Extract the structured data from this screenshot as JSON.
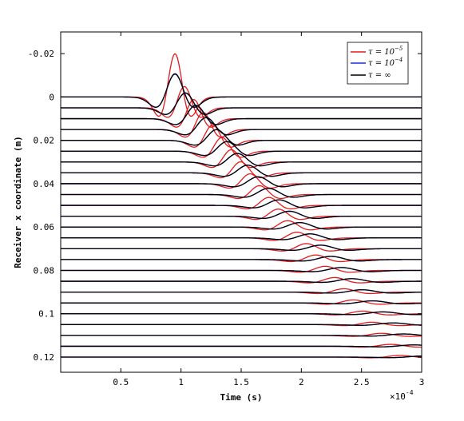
{
  "chart_data": {
    "type": "line",
    "title": "",
    "xlabel": "Time (s)",
    "ylabel": "Receiver x coordinate (m)",
    "x_multiplier_label": "×10",
    "x_multiplier_exp": "-4",
    "xlim": [
      0,
      3
    ],
    "ylim": [
      -0.03,
      0.127
    ],
    "y_reversed": true,
    "x_ticks": [
      0.5,
      1,
      1.5,
      2,
      2.5,
      3
    ],
    "x_tick_labels": [
      "0.5",
      "1",
      "1.5",
      "2",
      "2.5",
      "3"
    ],
    "y_ticks": [
      -0.02,
      0,
      0.02,
      0.04,
      0.06,
      0.08,
      0.1,
      0.12
    ],
    "y_tick_labels": [
      "-0.02",
      "0",
      "0.02",
      "0.04",
      "0.06",
      "0.08",
      "0.1",
      "0.12"
    ],
    "receiver_offsets": [
      0,
      0.005,
      0.01,
      0.015,
      0.02,
      0.025,
      0.03,
      0.035,
      0.04,
      0.045,
      0.05,
      0.055,
      0.06,
      0.065,
      0.07,
      0.075,
      0.08,
      0.085,
      0.09,
      0.095,
      0.1,
      0.105,
      0.11,
      0.115,
      0.12
    ],
    "legend_position": "top-right",
    "series": [
      {
        "name": "τ = 10^-5",
        "legend_base": "τ = 10",
        "legend_exp": "−5",
        "color": "#e41a1c",
        "wave_amp": 1.9,
        "decay": 0.55,
        "width": 0.11,
        "velocity": 0.62
      },
      {
        "name": "τ = 10^-4",
        "legend_base": "τ = 10",
        "legend_exp": "−4",
        "color": "#1f2bd6",
        "wave_amp": 1.0,
        "decay": 0.72,
        "width": 0.13,
        "velocity": 0.56
      },
      {
        "name": "τ = ∞",
        "legend_base": "τ = ",
        "legend_exp": "∞",
        "color": "#000000",
        "wave_amp": 1.02,
        "decay": 0.72,
        "width": 0.13,
        "velocity": 0.56
      }
    ]
  }
}
